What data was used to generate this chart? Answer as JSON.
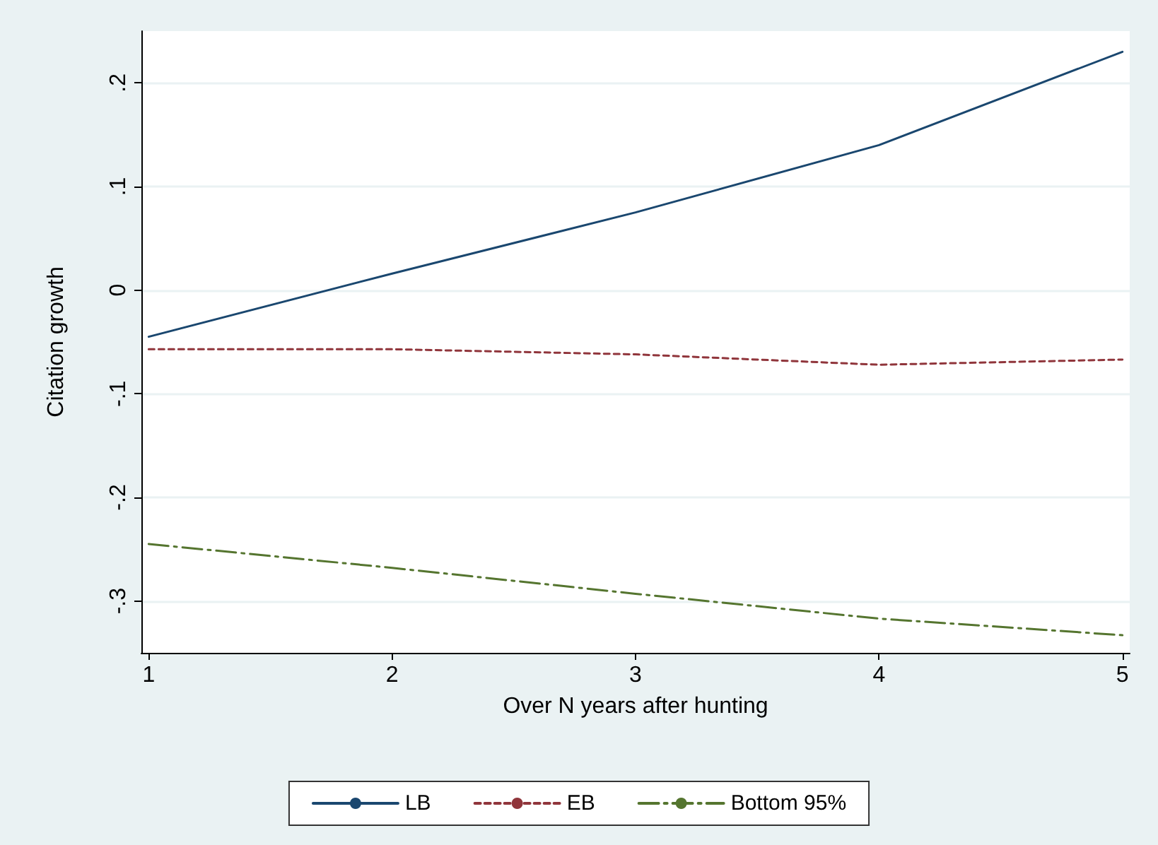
{
  "chart_data": {
    "type": "line",
    "xlabel": "Over N years after hunting",
    "ylabel": "Citation growth",
    "x": [
      1,
      2,
      3,
      4,
      5
    ],
    "series": [
      {
        "name": "LB",
        "color": "#1a476f",
        "line_style": "solid",
        "values": [
          -0.045,
          0.016,
          0.075,
          0.14,
          0.23
        ]
      },
      {
        "name": "EB",
        "color": "#90353b",
        "line_style": "dashed",
        "values": [
          -0.057,
          -0.057,
          -0.062,
          -0.072,
          -0.067
        ]
      },
      {
        "name": "Bottom 95%",
        "color": "#55752f",
        "line_style": "dashdot",
        "values": [
          -0.245,
          -0.268,
          -0.293,
          -0.317,
          -0.333
        ]
      }
    ],
    "xlim": [
      0.97,
      5.03
    ],
    "xticks": [
      1,
      2,
      3,
      4,
      5
    ],
    "ylim": [
      -0.35,
      0.25
    ],
    "yticks": [
      {
        "value": -0.3,
        "label": "-.3"
      },
      {
        "value": -0.2,
        "label": "-.2"
      },
      {
        "value": -0.1,
        "label": "-.1"
      },
      {
        "value": 0,
        "label": "0"
      },
      {
        "value": 0.1,
        "label": ".1"
      },
      {
        "value": 0.2,
        "label": ".2"
      }
    ],
    "grid": "y",
    "legend": "bottom",
    "marker": "none"
  }
}
